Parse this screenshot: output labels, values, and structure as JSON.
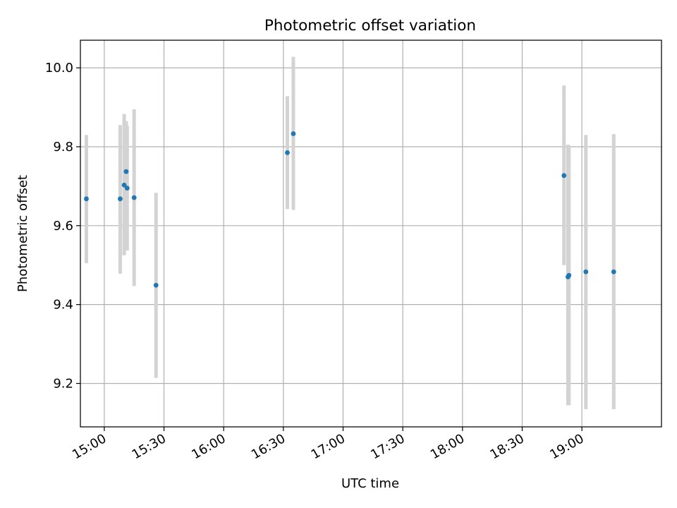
{
  "chart_data": {
    "type": "scatter",
    "title": "Photometric offset variation",
    "xlabel": "UTC time",
    "ylabel": "Photometric offset",
    "x_ticks": [
      "15:00",
      "15:30",
      "16:00",
      "16:30",
      "17:00",
      "17:30",
      "18:00",
      "18:30",
      "19:00"
    ],
    "y_ticks": [
      "9.2",
      "9.4",
      "9.6",
      "9.8",
      "10.0"
    ],
    "xlim": [
      "14:48",
      "19:40"
    ],
    "ylim": [
      9.09,
      10.07
    ],
    "grid": true,
    "marker_color": "#1f77b4",
    "errorbar_color": "#d3d3d3",
    "points": [
      {
        "time": "14:51",
        "y": 9.668,
        "ylo": 9.505,
        "yhi": 9.83
      },
      {
        "time": "15:08",
        "y": 9.668,
        "ylo": 9.478,
        "yhi": 9.855
      },
      {
        "time": "15:10",
        "y": 9.703,
        "ylo": 9.525,
        "yhi": 9.883
      },
      {
        "time": "15:11",
        "y": 9.737,
        "ylo": 9.565,
        "yhi": 9.865
      },
      {
        "time": "15:11.5",
        "y": 9.695,
        "ylo": 9.537,
        "yhi": 9.853
      },
      {
        "time": "15:15",
        "y": 9.671,
        "ylo": 9.447,
        "yhi": 9.895
      },
      {
        "time": "15:26",
        "y": 9.449,
        "ylo": 9.214,
        "yhi": 9.683
      },
      {
        "time": "16:32",
        "y": 9.785,
        "ylo": 9.642,
        "yhi": 9.928
      },
      {
        "time": "16:35",
        "y": 9.833,
        "ylo": 9.64,
        "yhi": 10.028
      },
      {
        "time": "18:51",
        "y": 9.727,
        "ylo": 9.5,
        "yhi": 9.955
      },
      {
        "time": "18:53",
        "y": 9.47,
        "ylo": 9.145,
        "yhi": 9.805
      },
      {
        "time": "18:53.5",
        "y": 9.474,
        "ylo": 9.145,
        "yhi": 9.803
      },
      {
        "time": "19:02",
        "y": 9.483,
        "ylo": 9.135,
        "yhi": 9.83
      },
      {
        "time": "19:16",
        "y": 9.483,
        "ylo": 9.135,
        "yhi": 9.832
      }
    ]
  }
}
